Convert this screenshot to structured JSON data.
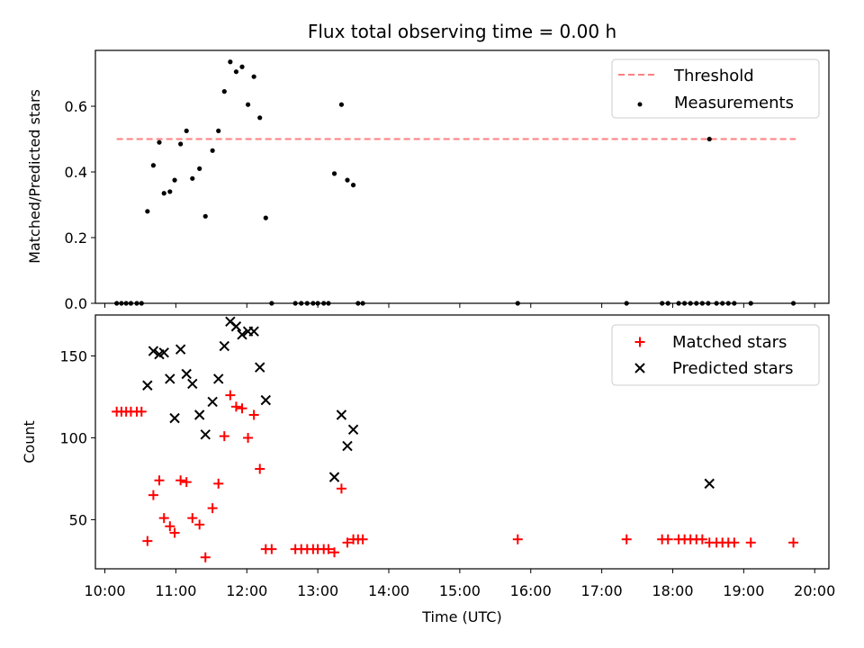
{
  "chart_data": [
    {
      "type": "scatter",
      "title": "Flux total observing time = 0.00 h",
      "xlabel": "",
      "ylabel": "Matched/Predicted stars",
      "xlim": [
        "09:52",
        "20:12"
      ],
      "ylim": [
        0,
        0.77
      ],
      "yticks": [
        "0.0",
        "0.2",
        "0.4",
        "0.6"
      ],
      "grid": false,
      "legend": {
        "position": "top-right",
        "entries": [
          "Threshold",
          "Measurements"
        ]
      },
      "threshold": {
        "name": "Threshold",
        "y": 0.5,
        "x_range": [
          "10:10",
          "19:44"
        ],
        "color": "#ff7f7f"
      },
      "series": [
        {
          "name": "Measurements",
          "marker": "dot",
          "color": "#000000",
          "points": [
            [
              "10:10",
              0
            ],
            [
              "10:14",
              0
            ],
            [
              "10:18",
              0
            ],
            [
              "10:22",
              0
            ],
            [
              "10:27",
              0
            ],
            [
              "10:31",
              0
            ],
            [
              "10:36",
              0.28
            ],
            [
              "10:41",
              0.42
            ],
            [
              "10:46",
              0.49
            ],
            [
              "10:50",
              0.335
            ],
            [
              "10:55",
              0.34
            ],
            [
              "10:59",
              0.375
            ],
            [
              "11:04",
              0.485
            ],
            [
              "11:09",
              0.525
            ],
            [
              "11:14",
              0.38
            ],
            [
              "11:20",
              0.41
            ],
            [
              "11:25",
              0.265
            ],
            [
              "11:31",
              0.465
            ],
            [
              "11:36",
              0.525
            ],
            [
              "11:41",
              0.645
            ],
            [
              "11:46",
              0.735
            ],
            [
              "11:51",
              0.705
            ],
            [
              "11:56",
              0.72
            ],
            [
              "12:01",
              0.605
            ],
            [
              "12:06",
              0.69
            ],
            [
              "12:11",
              0.565
            ],
            [
              "12:16",
              0.26
            ],
            [
              "12:21",
              0
            ],
            [
              "12:41",
              0
            ],
            [
              "12:46",
              0
            ],
            [
              "12:51",
              0
            ],
            [
              "12:56",
              0
            ],
            [
              "13:00",
              0
            ],
            [
              "13:05",
              0
            ],
            [
              "13:09",
              0
            ],
            [
              "13:14",
              0.395
            ],
            [
              "13:20",
              0.605
            ],
            [
              "13:25",
              0.375
            ],
            [
              "13:30",
              0.36
            ],
            [
              "13:34",
              0
            ],
            [
              "13:38",
              0
            ],
            [
              "15:49",
              0
            ],
            [
              "17:21",
              0
            ],
            [
              "17:51",
              0
            ],
            [
              "17:56",
              0
            ],
            [
              "18:05",
              0
            ],
            [
              "18:10",
              0
            ],
            [
              "18:15",
              0
            ],
            [
              "18:20",
              0
            ],
            [
              "18:25",
              0
            ],
            [
              "18:30",
              0
            ],
            [
              "18:31",
              0.5
            ],
            [
              "18:37",
              0
            ],
            [
              "18:42",
              0
            ],
            [
              "18:47",
              0
            ],
            [
              "18:52",
              0
            ],
            [
              "19:06",
              0
            ],
            [
              "19:42",
              0
            ]
          ]
        }
      ]
    },
    {
      "type": "scatter",
      "title": "",
      "xlabel": "Time (UTC)",
      "ylabel": "Count",
      "xlim": [
        "09:52",
        "20:12"
      ],
      "ylim": [
        20,
        175
      ],
      "xticks": [
        "10:00",
        "11:00",
        "12:00",
        "13:00",
        "14:00",
        "15:00",
        "16:00",
        "17:00",
        "18:00",
        "19:00",
        "20:00"
      ],
      "yticks": [
        "50",
        "100",
        "150"
      ],
      "grid": false,
      "legend": {
        "position": "top-right",
        "entries": [
          "Matched stars",
          "Predicted stars"
        ]
      },
      "series": [
        {
          "name": "Matched stars",
          "marker": "plus",
          "color": "#ff0000",
          "points": [
            [
              "10:10",
              116
            ],
            [
              "10:14",
              116
            ],
            [
              "10:18",
              116
            ],
            [
              "10:22",
              116
            ],
            [
              "10:27",
              116
            ],
            [
              "10:31",
              116
            ],
            [
              "10:36",
              37
            ],
            [
              "10:41",
              65
            ],
            [
              "10:46",
              74
            ],
            [
              "10:50",
              51
            ],
            [
              "10:55",
              46
            ],
            [
              "10:59",
              42
            ],
            [
              "11:04",
              74
            ],
            [
              "11:09",
              73
            ],
            [
              "11:14",
              51
            ],
            [
              "11:20",
              47
            ],
            [
              "11:25",
              27
            ],
            [
              "11:31",
              57
            ],
            [
              "11:36",
              72
            ],
            [
              "11:41",
              101
            ],
            [
              "11:46",
              126
            ],
            [
              "11:51",
              119
            ],
            [
              "11:56",
              118
            ],
            [
              "12:01",
              100
            ],
            [
              "12:06",
              114
            ],
            [
              "12:11",
              81
            ],
            [
              "12:16",
              32
            ],
            [
              "12:21",
              32
            ],
            [
              "12:41",
              32
            ],
            [
              "12:46",
              32
            ],
            [
              "12:51",
              32
            ],
            [
              "12:56",
              32
            ],
            [
              "13:00",
              32
            ],
            [
              "13:05",
              32
            ],
            [
              "13:09",
              32
            ],
            [
              "13:14",
              30
            ],
            [
              "13:20",
              69
            ],
            [
              "13:25",
              36
            ],
            [
              "13:30",
              38
            ],
            [
              "13:34",
              38
            ],
            [
              "13:38",
              38
            ],
            [
              "15:49",
              38
            ],
            [
              "17:21",
              38
            ],
            [
              "17:51",
              38
            ],
            [
              "17:56",
              38
            ],
            [
              "18:05",
              38
            ],
            [
              "18:10",
              38
            ],
            [
              "18:15",
              38
            ],
            [
              "18:20",
              38
            ],
            [
              "18:25",
              38
            ],
            [
              "18:31",
              36
            ],
            [
              "18:37",
              36
            ],
            [
              "18:42",
              36
            ],
            [
              "18:47",
              36
            ],
            [
              "18:52",
              36
            ],
            [
              "19:06",
              36
            ],
            [
              "19:42",
              36
            ]
          ]
        },
        {
          "name": "Predicted stars",
          "marker": "x",
          "color": "#000000",
          "points": [
            [
              "10:36",
              132
            ],
            [
              "10:41",
              153
            ],
            [
              "10:46",
              151
            ],
            [
              "10:50",
              152
            ],
            [
              "10:55",
              136
            ],
            [
              "10:59",
              112
            ],
            [
              "11:04",
              154
            ],
            [
              "11:09",
              139
            ],
            [
              "11:14",
              133
            ],
            [
              "11:20",
              114
            ],
            [
              "11:25",
              102
            ],
            [
              "11:31",
              122
            ],
            [
              "11:36",
              136
            ],
            [
              "11:41",
              156
            ],
            [
              "11:46",
              171
            ],
            [
              "11:51",
              168
            ],
            [
              "11:56",
              163
            ],
            [
              "12:01",
              165
            ],
            [
              "12:06",
              165
            ],
            [
              "12:11",
              143
            ],
            [
              "12:16",
              123
            ],
            [
              "13:14",
              76
            ],
            [
              "13:20",
              114
            ],
            [
              "13:25",
              95
            ],
            [
              "13:30",
              105
            ],
            [
              "18:31",
              72
            ]
          ]
        }
      ]
    }
  ]
}
